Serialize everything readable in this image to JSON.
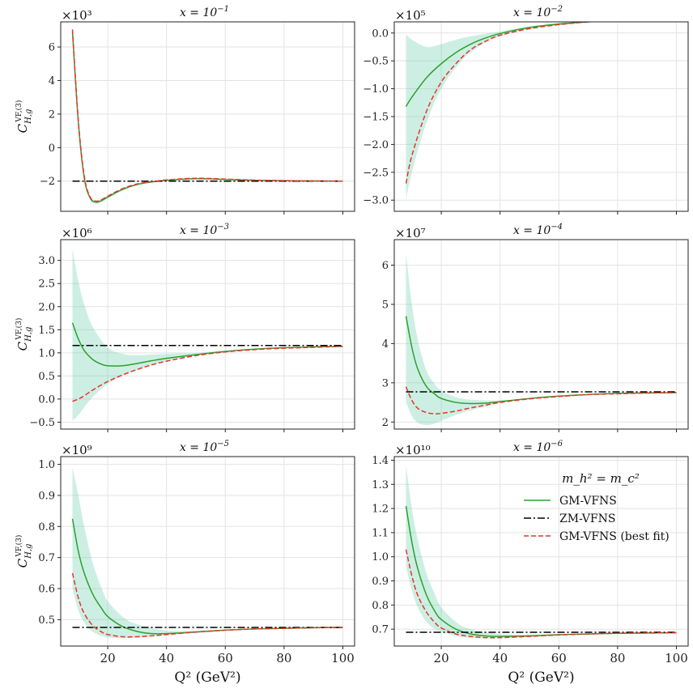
{
  "chart_data": [
    {
      "type": "line",
      "title": "x = 10^-1",
      "multiplier": "×10³",
      "ylabel": "C_{H,g}^{VF,(3)}",
      "xlabel": "",
      "xlim": [
        4,
        104
      ],
      "ylim": [
        -3.8,
        7.5
      ],
      "yticks": [
        -2,
        0,
        2,
        4,
        6
      ],
      "yticklabels": [
        "−2",
        "0",
        "2",
        "4",
        "6"
      ],
      "xticks": [
        20,
        40,
        60,
        80,
        100
      ],
      "xticklabels": [],
      "grid": true,
      "series": [
        {
          "name": "GM-VFNS",
          "color": "#2ca02c",
          "style": "solid",
          "x": [
            8,
            10,
            12,
            14,
            16,
            18,
            20,
            25,
            30,
            35,
            40,
            50,
            60,
            70,
            80,
            90,
            100
          ],
          "y": [
            6.9,
            1.5,
            -1.8,
            -3.0,
            -3.25,
            -3.15,
            -2.95,
            -2.5,
            -2.2,
            -2.05,
            -1.95,
            -1.85,
            -1.9,
            -1.95,
            -1.98,
            -1.99,
            -2.0
          ]
        },
        {
          "name": "ZM-VFNS",
          "color": "#000000",
          "style": "dashdot",
          "x": [
            8,
            100
          ],
          "y": [
            -2.0,
            -2.0
          ]
        },
        {
          "name": "GM-VFNS (best fit)",
          "color": "#e8332c",
          "style": "dashed",
          "x": [
            8,
            10,
            12,
            14,
            16,
            18,
            20,
            25,
            30,
            35,
            40,
            50,
            60,
            70,
            80,
            90,
            100
          ],
          "y": [
            7.05,
            1.6,
            -1.7,
            -2.95,
            -3.2,
            -3.1,
            -2.9,
            -2.45,
            -2.17,
            -2.03,
            -1.93,
            -1.83,
            -1.88,
            -1.94,
            -1.97,
            -1.99,
            -2.0
          ]
        }
      ],
      "band": {
        "color": "#66cdaa",
        "x": [
          8,
          10,
          12,
          14,
          16,
          18,
          20,
          25,
          30,
          40,
          60,
          80,
          100
        ],
        "lower": [
          6.8,
          1.4,
          -1.9,
          -3.1,
          -3.35,
          -3.25,
          -3.05,
          -2.55,
          -2.25,
          -1.98,
          -1.92,
          -1.99,
          -2.0
        ],
        "upper": [
          7.05,
          1.6,
          -1.7,
          -2.9,
          -3.15,
          -3.05,
          -2.85,
          -2.45,
          -2.15,
          -1.92,
          -1.88,
          -1.97,
          -2.0
        ]
      }
    },
    {
      "type": "line",
      "title": "x = 10^-2",
      "multiplier": "×10⁵",
      "ylabel": "",
      "xlabel": "",
      "xlim": [
        4,
        104
      ],
      "ylim": [
        -3.2,
        0.2
      ],
      "yticks": [
        -3.0,
        -2.5,
        -2.0,
        -1.5,
        -1.0,
        -0.5,
        0.0
      ],
      "yticklabels": [
        "−3.0",
        "−2.5",
        "−2.0",
        "−1.5",
        "−1.0",
        "−0.5",
        "0.0"
      ],
      "xticks": [
        20,
        40,
        60,
        80,
        100
      ],
      "xticklabels": [],
      "grid": true,
      "series": [
        {
          "name": "GM-VFNS",
          "color": "#2ca02c",
          "style": "solid",
          "x": [
            8,
            10,
            15,
            20,
            25,
            30,
            35,
            40,
            50,
            60,
            70,
            80,
            90,
            100
          ],
          "y": [
            -1.32,
            -1.15,
            -0.8,
            -0.55,
            -0.35,
            -0.2,
            -0.09,
            -0.01,
            0.1,
            0.16,
            0.2,
            0.23,
            0.25,
            0.27
          ]
        },
        {
          "name": "ZM-VFNS",
          "color": "#000000",
          "style": "dashdot",
          "x": [
            8,
            100
          ],
          "y": [
            0.29,
            0.29
          ]
        },
        {
          "name": "GM-VFNS (best fit)",
          "color": "#e8332c",
          "style": "dashed",
          "x": [
            8,
            10,
            15,
            20,
            25,
            30,
            35,
            40,
            50,
            60,
            70,
            80,
            90,
            100
          ],
          "y": [
            -2.7,
            -2.2,
            -1.4,
            -0.88,
            -0.55,
            -0.3,
            -0.15,
            -0.04,
            0.08,
            0.15,
            0.2,
            0.23,
            0.25,
            0.27
          ]
        }
      ],
      "band": {
        "color": "#66cdaa",
        "x": [
          8,
          10,
          15,
          20,
          25,
          30,
          40,
          60,
          80,
          100
        ],
        "lower": [
          -3.0,
          -2.5,
          -1.6,
          -1.0,
          -0.62,
          -0.35,
          -0.06,
          0.14,
          0.22,
          0.26
        ],
        "upper": [
          -0.02,
          -0.12,
          -0.25,
          -0.2,
          -0.12,
          -0.06,
          0.03,
          0.18,
          0.24,
          0.28
        ]
      }
    },
    {
      "type": "line",
      "title": "x = 10^-3",
      "multiplier": "×10⁶",
      "ylabel": "C_{H,g}^{VF,(3)}",
      "xlabel": "",
      "xlim": [
        4,
        104
      ],
      "ylim": [
        -0.65,
        3.45
      ],
      "yticks": [
        -0.5,
        0.0,
        0.5,
        1.0,
        1.5,
        2.0,
        2.5,
        3.0
      ],
      "yticklabels": [
        "−0.5",
        "0.0",
        "0.5",
        "1.0",
        "1.5",
        "2.0",
        "2.5",
        "3.0"
      ],
      "xticks": [
        20,
        40,
        60,
        80,
        100
      ],
      "xticklabels": [],
      "grid": true,
      "series": [
        {
          "name": "GM-VFNS",
          "color": "#2ca02c",
          "style": "solid",
          "x": [
            8,
            10,
            12,
            15,
            18,
            20,
            25,
            30,
            35,
            40,
            50,
            60,
            70,
            80,
            90,
            100
          ],
          "y": [
            1.65,
            1.3,
            1.05,
            0.85,
            0.75,
            0.72,
            0.72,
            0.77,
            0.83,
            0.88,
            0.96,
            1.03,
            1.08,
            1.11,
            1.13,
            1.14
          ]
        },
        {
          "name": "ZM-VFNS",
          "color": "#000000",
          "style": "dashdot",
          "x": [
            8,
            100
          ],
          "y": [
            1.16,
            1.16
          ]
        },
        {
          "name": "GM-VFNS (best fit)",
          "color": "#e8332c",
          "style": "dashed",
          "x": [
            8,
            10,
            12,
            15,
            20,
            25,
            30,
            35,
            40,
            50,
            60,
            70,
            80,
            90,
            100
          ],
          "y": [
            -0.05,
            0.0,
            0.07,
            0.2,
            0.38,
            0.52,
            0.64,
            0.74,
            0.82,
            0.94,
            1.02,
            1.07,
            1.1,
            1.12,
            1.14
          ]
        }
      ],
      "band": {
        "color": "#66cdaa",
        "x": [
          8,
          10,
          12,
          15,
          20,
          25,
          30,
          40,
          50,
          60,
          80,
          100
        ],
        "lower": [
          -0.47,
          -0.35,
          -0.18,
          0.05,
          0.33,
          0.5,
          0.63,
          0.82,
          0.94,
          1.02,
          1.1,
          1.14
        ],
        "upper": [
          3.25,
          2.55,
          2.05,
          1.55,
          1.12,
          0.98,
          0.95,
          0.98,
          1.0,
          1.05,
          1.11,
          1.14
        ]
      }
    },
    {
      "type": "line",
      "title": "x = 10^-4",
      "multiplier": "×10⁷",
      "ylabel": "",
      "xlabel": "",
      "xlim": [
        4,
        104
      ],
      "ylim": [
        1.82,
        6.65
      ],
      "yticks": [
        2,
        3,
        4,
        5,
        6
      ],
      "yticklabels": [
        "2",
        "3",
        "4",
        "5",
        "6"
      ],
      "xticks": [
        20,
        40,
        60,
        80,
        100
      ],
      "xticklabels": [],
      "grid": true,
      "series": [
        {
          "name": "GM-VFNS",
          "color": "#2ca02c",
          "style": "solid",
          "x": [
            8,
            10,
            12,
            15,
            18,
            20,
            25,
            30,
            35,
            40,
            50,
            60,
            70,
            80,
            90,
            100
          ],
          "y": [
            4.7,
            3.9,
            3.35,
            2.9,
            2.7,
            2.6,
            2.5,
            2.47,
            2.48,
            2.52,
            2.6,
            2.66,
            2.7,
            2.73,
            2.74,
            2.75
          ]
        },
        {
          "name": "ZM-VFNS",
          "color": "#000000",
          "style": "dashdot",
          "x": [
            8,
            100
          ],
          "y": [
            2.77,
            2.77
          ]
        },
        {
          "name": "GM-VFNS (best fit)",
          "color": "#e8332c",
          "style": "dashed",
          "x": [
            8,
            10,
            12,
            15,
            18,
            20,
            25,
            30,
            35,
            40,
            50,
            60,
            70,
            80,
            90,
            100
          ],
          "y": [
            2.9,
            2.55,
            2.35,
            2.24,
            2.21,
            2.22,
            2.28,
            2.36,
            2.43,
            2.5,
            2.59,
            2.65,
            2.7,
            2.72,
            2.74,
            2.75
          ]
        }
      ],
      "band": {
        "color": "#66cdaa",
        "x": [
          8,
          10,
          12,
          15,
          18,
          20,
          25,
          30,
          40,
          50,
          60,
          80,
          100
        ],
        "lower": [
          2.5,
          2.15,
          1.98,
          1.92,
          1.97,
          2.03,
          2.18,
          2.3,
          2.48,
          2.58,
          2.64,
          2.72,
          2.75
        ],
        "upper": [
          6.3,
          5.0,
          4.1,
          3.3,
          2.95,
          2.8,
          2.63,
          2.57,
          2.55,
          2.61,
          2.67,
          2.74,
          2.76
        ]
      }
    },
    {
      "type": "line",
      "title": "x = 10^-5",
      "multiplier": "×10⁹",
      "ylabel": "C_{H,g}^{VF,(3)}",
      "xlabel": "Q² (GeV²)",
      "xlim": [
        4,
        104
      ],
      "ylim": [
        0.415,
        1.025
      ],
      "yticks": [
        0.5,
        0.6,
        0.7,
        0.8,
        0.9,
        1.0
      ],
      "yticklabels": [
        "0.5",
        "0.6",
        "0.7",
        "0.8",
        "0.9",
        "1.0"
      ],
      "xticks": [
        20,
        40,
        60,
        80,
        100
      ],
      "xticklabels": [
        "20",
        "40",
        "60",
        "80",
        "100"
      ],
      "grid": true,
      "series": [
        {
          "name": "GM-VFNS",
          "color": "#2ca02c",
          "style": "solid",
          "x": [
            8,
            10,
            12,
            15,
            18,
            20,
            25,
            30,
            35,
            40,
            50,
            60,
            70,
            80,
            90,
            100
          ],
          "y": [
            0.825,
            0.72,
            0.65,
            0.58,
            0.535,
            0.51,
            0.478,
            0.462,
            0.455,
            0.455,
            0.46,
            0.466,
            0.47,
            0.472,
            0.474,
            0.475
          ]
        },
        {
          "name": "ZM-VFNS",
          "color": "#000000",
          "style": "dashdot",
          "x": [
            8,
            100
          ],
          "y": [
            0.475,
            0.475
          ]
        },
        {
          "name": "GM-VFNS (best fit)",
          "color": "#e8332c",
          "style": "dashed",
          "x": [
            8,
            10,
            12,
            15,
            18,
            20,
            25,
            30,
            35,
            40,
            50,
            60,
            70,
            80,
            90,
            100
          ],
          "y": [
            0.65,
            0.57,
            0.52,
            0.48,
            0.46,
            0.452,
            0.445,
            0.445,
            0.448,
            0.452,
            0.46,
            0.466,
            0.47,
            0.472,
            0.474,
            0.475
          ]
        }
      ],
      "band": {
        "color": "#66cdaa",
        "x": [
          8,
          10,
          12,
          15,
          18,
          20,
          25,
          30,
          40,
          50,
          60,
          80,
          100
        ],
        "lower": [
          0.6,
          0.53,
          0.49,
          0.46,
          0.448,
          0.443,
          0.44,
          0.442,
          0.45,
          0.458,
          0.465,
          0.472,
          0.475
        ],
        "upper": [
          0.99,
          0.9,
          0.8,
          0.68,
          0.6,
          0.56,
          0.51,
          0.485,
          0.465,
          0.465,
          0.468,
          0.473,
          0.476
        ]
      }
    },
    {
      "type": "line",
      "title": "x = 10^-6",
      "multiplier": "×10¹⁰",
      "ylabel": "",
      "xlabel": "Q² (GeV²)",
      "xlim": [
        4,
        104
      ],
      "ylim": [
        0.63,
        1.415
      ],
      "yticks": [
        0.7,
        0.8,
        0.9,
        1.0,
        1.1,
        1.2,
        1.3,
        1.4
      ],
      "yticklabels": [
        "0.7",
        "0.8",
        "0.9",
        "1.0",
        "1.1",
        "1.2",
        "1.3",
        "1.4"
      ],
      "xticks": [
        20,
        40,
        60,
        80,
        100
      ],
      "xticklabels": [
        "20",
        "40",
        "60",
        "80",
        "100"
      ],
      "grid": true,
      "legend": {
        "title": "m_h² = m_c²",
        "placement": "upper-right",
        "entries": [
          "GM-VFNS",
          "ZM-VFNS",
          "GM-VFNS (best fit)"
        ]
      },
      "series": [
        {
          "name": "GM-VFNS",
          "color": "#2ca02c",
          "style": "solid",
          "x": [
            8,
            10,
            12,
            15,
            18,
            20,
            25,
            30,
            35,
            40,
            50,
            60,
            70,
            80,
            90,
            100
          ],
          "y": [
            1.21,
            1.06,
            0.95,
            0.84,
            0.77,
            0.74,
            0.7,
            0.68,
            0.672,
            0.67,
            0.672,
            0.677,
            0.68,
            0.683,
            0.684,
            0.685
          ]
        },
        {
          "name": "ZM-VFNS",
          "color": "#000000",
          "style": "dashdot",
          "x": [
            8,
            100
          ],
          "y": [
            0.687,
            0.687
          ]
        },
        {
          "name": "GM-VFNS (best fit)",
          "color": "#e8332c",
          "style": "dashed",
          "x": [
            8,
            10,
            12,
            15,
            18,
            20,
            25,
            30,
            35,
            40,
            50,
            60,
            70,
            80,
            90,
            100
          ],
          "y": [
            1.03,
            0.92,
            0.84,
            0.77,
            0.725,
            0.705,
            0.68,
            0.67,
            0.665,
            0.665,
            0.67,
            0.676,
            0.68,
            0.683,
            0.684,
            0.685
          ]
        }
      ],
      "band": {
        "color": "#66cdaa",
        "x": [
          8,
          10,
          12,
          15,
          18,
          20,
          25,
          30,
          40,
          50,
          60,
          80,
          100
        ],
        "lower": [
          0.96,
          0.86,
          0.79,
          0.73,
          0.7,
          0.69,
          0.672,
          0.664,
          0.662,
          0.668,
          0.674,
          0.682,
          0.685
        ],
        "upper": [
          1.38,
          1.2,
          1.07,
          0.93,
          0.84,
          0.79,
          0.73,
          0.7,
          0.68,
          0.678,
          0.68,
          0.685,
          0.687
        ]
      }
    }
  ]
}
